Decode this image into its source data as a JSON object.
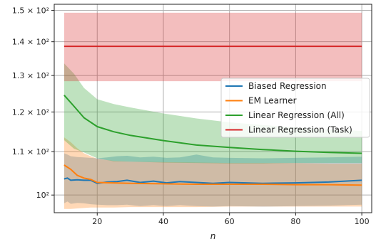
{
  "chart_data": {
    "type": "line",
    "title": "",
    "xlabel": "n",
    "ylabel": "",
    "xlim": [
      7,
      103
    ],
    "ylim": [
      96.2,
      152
    ],
    "yscale": "log",
    "grid": true,
    "legend": "center-right",
    "x_ticks": [
      20,
      40,
      60,
      80,
      100
    ],
    "x_tick_labels": [
      "20",
      "40",
      "60",
      "80",
      "100"
    ],
    "y_ticks": [
      100,
      110,
      120,
      130,
      140,
      150
    ],
    "y_tick_labels": [
      "10²",
      "1.1 × 10²",
      "1.2 × 10²",
      "1.3 × 10²",
      "1.4 × 10²",
      "1.5 × 10²"
    ],
    "series": [
      {
        "name": "Biased Regression",
        "color": "#1f77b4",
        "x": [
          10,
          11,
          12,
          14,
          16,
          18,
          20,
          23,
          26,
          29,
          33,
          37,
          41,
          45,
          50,
          55,
          60,
          70,
          80,
          90,
          100
        ],
        "y": [
          103.6,
          103.8,
          103.3,
          103.4,
          103.3,
          103.3,
          102.6,
          102.9,
          103.0,
          103.3,
          102.8,
          103.1,
          102.7,
          103.0,
          102.8,
          102.6,
          102.8,
          102.6,
          102.7,
          102.9,
          103.3
        ],
        "lower": [
          98.2,
          98.6,
          98.1,
          98.3,
          98.2,
          98.0,
          97.9,
          97.8,
          97.8,
          97.9,
          97.6,
          97.8,
          97.6,
          97.8,
          97.6,
          97.5,
          97.6,
          97.5,
          97.6,
          97.7,
          97.9
        ],
        "upper": [
          109.6,
          109.3,
          108.9,
          108.7,
          108.6,
          108.5,
          108.4,
          108.6,
          108.9,
          109.0,
          108.6,
          108.8,
          108.5,
          108.6,
          109.3,
          108.6,
          108.5,
          108.4,
          108.5,
          108.6,
          108.8
        ]
      },
      {
        "name": "EM Learner",
        "color": "#ff7f0e",
        "x": [
          10,
          12,
          14,
          16,
          18,
          20,
          25,
          30,
          40,
          50,
          60,
          70,
          80,
          90,
          100
        ],
        "y": [
          106.8,
          105.8,
          104.4,
          103.8,
          103.5,
          102.8,
          102.7,
          102.6,
          102.5,
          102.4,
          102.4,
          102.4,
          102.3,
          102.3,
          102.2
        ],
        "lower": [
          97.0,
          97.0,
          97.1,
          97.2,
          97.3,
          97.3,
          97.3,
          97.4,
          97.4,
          97.4,
          97.5,
          97.5,
          97.5,
          97.5,
          97.5
        ],
        "upper": [
          113.5,
          112.3,
          110.8,
          109.6,
          108.9,
          108.3,
          107.8,
          107.6,
          107.5,
          107.4,
          107.3,
          107.3,
          107.3,
          107.2,
          107.2
        ]
      },
      {
        "name": "Linear Regression (All)",
        "color": "#2ca02c",
        "x": [
          10,
          13,
          16,
          20,
          25,
          30,
          40,
          50,
          60,
          70,
          80,
          90,
          100
        ],
        "y": [
          124.5,
          121.5,
          118.5,
          116.2,
          114.9,
          114.0,
          112.7,
          111.6,
          111.0,
          110.5,
          110.1,
          109.8,
          109.6
        ],
        "lower": [
          112.8,
          110.7,
          109.8,
          108.4,
          107.7,
          107.6,
          107.4,
          107.3,
          107.2,
          107.2,
          107.3,
          107.3,
          107.3
        ],
        "upper": [
          133.5,
          130.5,
          126.5,
          123.4,
          122.1,
          121.2,
          119.6,
          118.3,
          117.3,
          116.6,
          116.0,
          115.5,
          115.1
        ]
      },
      {
        "name": "Linear Regression (Task)",
        "color": "#d62728",
        "x": [
          10,
          100
        ],
        "y": [
          138.6,
          138.6
        ],
        "lower": [
          128.4,
          128.4
        ],
        "upper": [
          149.2,
          149.2
        ]
      }
    ]
  }
}
